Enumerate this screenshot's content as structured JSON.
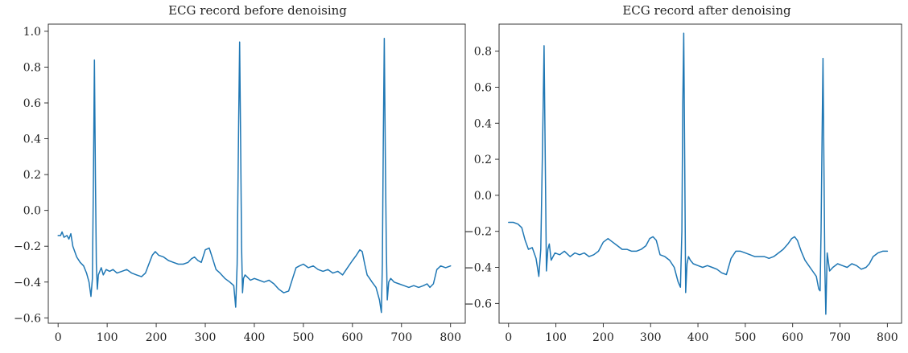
{
  "chart_data": [
    {
      "type": "line",
      "title": "ECG record before denoising",
      "xlabel": "",
      "ylabel": "",
      "xlim": [
        -20,
        830
      ],
      "ylim": [
        -0.63,
        1.04
      ],
      "xticks": [
        0,
        100,
        200,
        300,
        400,
        500,
        600,
        700,
        800
      ],
      "yticks": [
        -0.6,
        -0.4,
        -0.2,
        0.0,
        0.2,
        0.4,
        0.6,
        0.8,
        1.0
      ],
      "ytick_labels": [
        "−0.6",
        "−0.4",
        "−0.2",
        "0.0",
        "0.2",
        "0.4",
        "0.6",
        "0.8",
        "1.0"
      ],
      "grid": false,
      "color": "#1f77b4",
      "series": [
        {
          "x": [
            0,
            5,
            8,
            12,
            18,
            22,
            26,
            30,
            38,
            45,
            52,
            58,
            63,
            67,
            70,
            72,
            74,
            76,
            78,
            80,
            82,
            85,
            88,
            92,
            98,
            105,
            112,
            120,
            130,
            140,
            150,
            160,
            170,
            178,
            185,
            192,
            198,
            205,
            215,
            225,
            235,
            245,
            255,
            265,
            272,
            278,
            285,
            292,
            300,
            308,
            315,
            322,
            330,
            340,
            350,
            358,
            362,
            365,
            368,
            370,
            372,
            374,
            376,
            378,
            381,
            385,
            392,
            400,
            410,
            420,
            430,
            440,
            450,
            460,
            470,
            478,
            485,
            492,
            500,
            510,
            520,
            530,
            540,
            550,
            560,
            570,
            580,
            590,
            600,
            608,
            615,
            620,
            625,
            630,
            635,
            640,
            648,
            655,
            659,
            661,
            663,
            665,
            667,
            669,
            671,
            674,
            678,
            685,
            695,
            705,
            715,
            725,
            735,
            745,
            752,
            758,
            765,
            772,
            780,
            790,
            800
          ],
          "y": [
            -0.14,
            -0.14,
            -0.12,
            -0.15,
            -0.14,
            -0.16,
            -0.13,
            -0.2,
            -0.26,
            -0.29,
            -0.31,
            -0.35,
            -0.4,
            -0.48,
            -0.38,
            0.2,
            0.84,
            0.2,
            -0.3,
            -0.44,
            -0.36,
            -0.34,
            -0.32,
            -0.36,
            -0.33,
            -0.34,
            -0.33,
            -0.35,
            -0.34,
            -0.33,
            -0.35,
            -0.36,
            -0.37,
            -0.35,
            -0.3,
            -0.25,
            -0.23,
            -0.25,
            -0.26,
            -0.28,
            -0.29,
            -0.3,
            -0.3,
            -0.29,
            -0.27,
            -0.26,
            -0.28,
            -0.29,
            -0.22,
            -0.21,
            -0.27,
            -0.33,
            -0.35,
            -0.38,
            -0.4,
            -0.42,
            -0.54,
            -0.3,
            0.5,
            0.94,
            0.4,
            -0.2,
            -0.46,
            -0.38,
            -0.36,
            -0.37,
            -0.39,
            -0.38,
            -0.39,
            -0.4,
            -0.39,
            -0.41,
            -0.44,
            -0.46,
            -0.45,
            -0.38,
            -0.32,
            -0.31,
            -0.3,
            -0.32,
            -0.31,
            -0.33,
            -0.34,
            -0.33,
            -0.35,
            -0.34,
            -0.36,
            -0.32,
            -0.28,
            -0.25,
            -0.22,
            -0.23,
            -0.3,
            -0.36,
            -0.38,
            -0.4,
            -0.43,
            -0.5,
            -0.57,
            -0.3,
            0.4,
            0.96,
            0.3,
            -0.2,
            -0.5,
            -0.4,
            -0.38,
            -0.4,
            -0.41,
            -0.42,
            -0.43,
            -0.42,
            -0.43,
            -0.42,
            -0.41,
            -0.43,
            -0.41,
            -0.33,
            -0.31,
            -0.32,
            -0.31
          ]
        }
      ]
    },
    {
      "type": "line",
      "title": "ECG record after denoising",
      "xlabel": "",
      "ylabel": "",
      "xlim": [
        -20,
        830
      ],
      "ylim": [
        -0.71,
        0.95
      ],
      "xticks": [
        0,
        100,
        200,
        300,
        400,
        500,
        600,
        700,
        800
      ],
      "yticks": [
        -0.6,
        -0.4,
        -0.2,
        0.0,
        0.2,
        0.4,
        0.6,
        0.8
      ],
      "ytick_labels": [
        "−0.6",
        "−0.4",
        "−0.2",
        "0.0",
        "0.2",
        "0.4",
        "0.6",
        "0.8"
      ],
      "grid": false,
      "color": "#1f77b4",
      "series": [
        {
          "x": [
            0,
            10,
            20,
            28,
            35,
            42,
            50,
            58,
            64,
            68,
            72,
            75,
            78,
            80,
            83,
            86,
            90,
            98,
            108,
            118,
            130,
            140,
            150,
            160,
            170,
            180,
            190,
            200,
            210,
            220,
            230,
            240,
            250,
            260,
            270,
            280,
            290,
            298,
            305,
            312,
            320,
            330,
            340,
            350,
            358,
            363,
            366,
            368,
            370,
            372,
            374,
            377,
            380,
            384,
            390,
            400,
            410,
            420,
            430,
            440,
            450,
            460,
            470,
            480,
            490,
            500,
            510,
            520,
            530,
            540,
            550,
            560,
            570,
            580,
            590,
            598,
            604,
            610,
            618,
            626,
            634,
            642,
            650,
            655,
            658,
            660,
            662,
            664,
            666,
            668,
            670,
            673,
            678,
            685,
            695,
            705,
            715,
            725,
            735,
            745,
            755,
            762,
            770,
            780,
            790,
            800
          ],
          "y": [
            -0.15,
            -0.15,
            -0.16,
            -0.18,
            -0.25,
            -0.3,
            -0.29,
            -0.35,
            -0.45,
            -0.3,
            0.3,
            0.83,
            0.1,
            -0.42,
            -0.3,
            -0.27,
            -0.36,
            -0.32,
            -0.33,
            -0.31,
            -0.34,
            -0.32,
            -0.33,
            -0.32,
            -0.34,
            -0.33,
            -0.31,
            -0.26,
            -0.24,
            -0.26,
            -0.28,
            -0.3,
            -0.3,
            -0.31,
            -0.31,
            -0.3,
            -0.28,
            -0.24,
            -0.23,
            -0.25,
            -0.33,
            -0.34,
            -0.36,
            -0.4,
            -0.48,
            -0.51,
            -0.2,
            0.5,
            0.9,
            0.2,
            -0.54,
            -0.38,
            -0.34,
            -0.36,
            -0.38,
            -0.39,
            -0.4,
            -0.39,
            -0.4,
            -0.41,
            -0.43,
            -0.44,
            -0.35,
            -0.31,
            -0.31,
            -0.32,
            -0.33,
            -0.34,
            -0.34,
            -0.34,
            -0.35,
            -0.34,
            -0.32,
            -0.3,
            -0.27,
            -0.24,
            -0.23,
            -0.25,
            -0.31,
            -0.36,
            -0.39,
            -0.42,
            -0.45,
            -0.52,
            -0.53,
            -0.2,
            0.3,
            0.76,
            0.2,
            -0.4,
            -0.66,
            -0.32,
            -0.42,
            -0.4,
            -0.38,
            -0.39,
            -0.4,
            -0.38,
            -0.39,
            -0.41,
            -0.4,
            -0.38,
            -0.34,
            -0.32,
            -0.31,
            -0.31
          ]
        }
      ]
    }
  ]
}
